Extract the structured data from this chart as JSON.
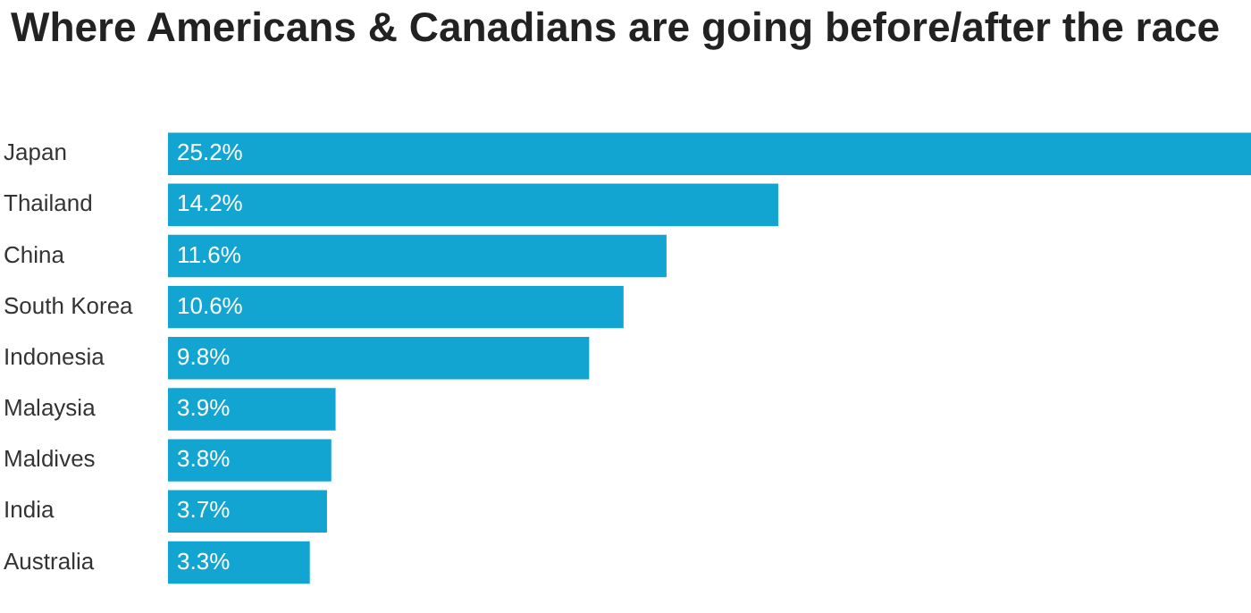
{
  "chart_data": {
    "type": "bar",
    "orientation": "horizontal",
    "title": "Where Americans & Canadians are going before/after the race",
    "categories": [
      "Japan",
      "Thailand",
      "China",
      "South Korea",
      "Indonesia",
      "Malaysia",
      "Maldives",
      "India",
      "Australia"
    ],
    "values": [
      25.2,
      14.2,
      11.6,
      10.6,
      9.8,
      3.9,
      3.8,
      3.7,
      3.3
    ],
    "value_labels": [
      "25.2%",
      "14.2%",
      "11.6%",
      "10.6%",
      "9.8%",
      "3.9%",
      "3.8%",
      "3.7%",
      "3.3%"
    ],
    "color": "#12a5d2"
  }
}
